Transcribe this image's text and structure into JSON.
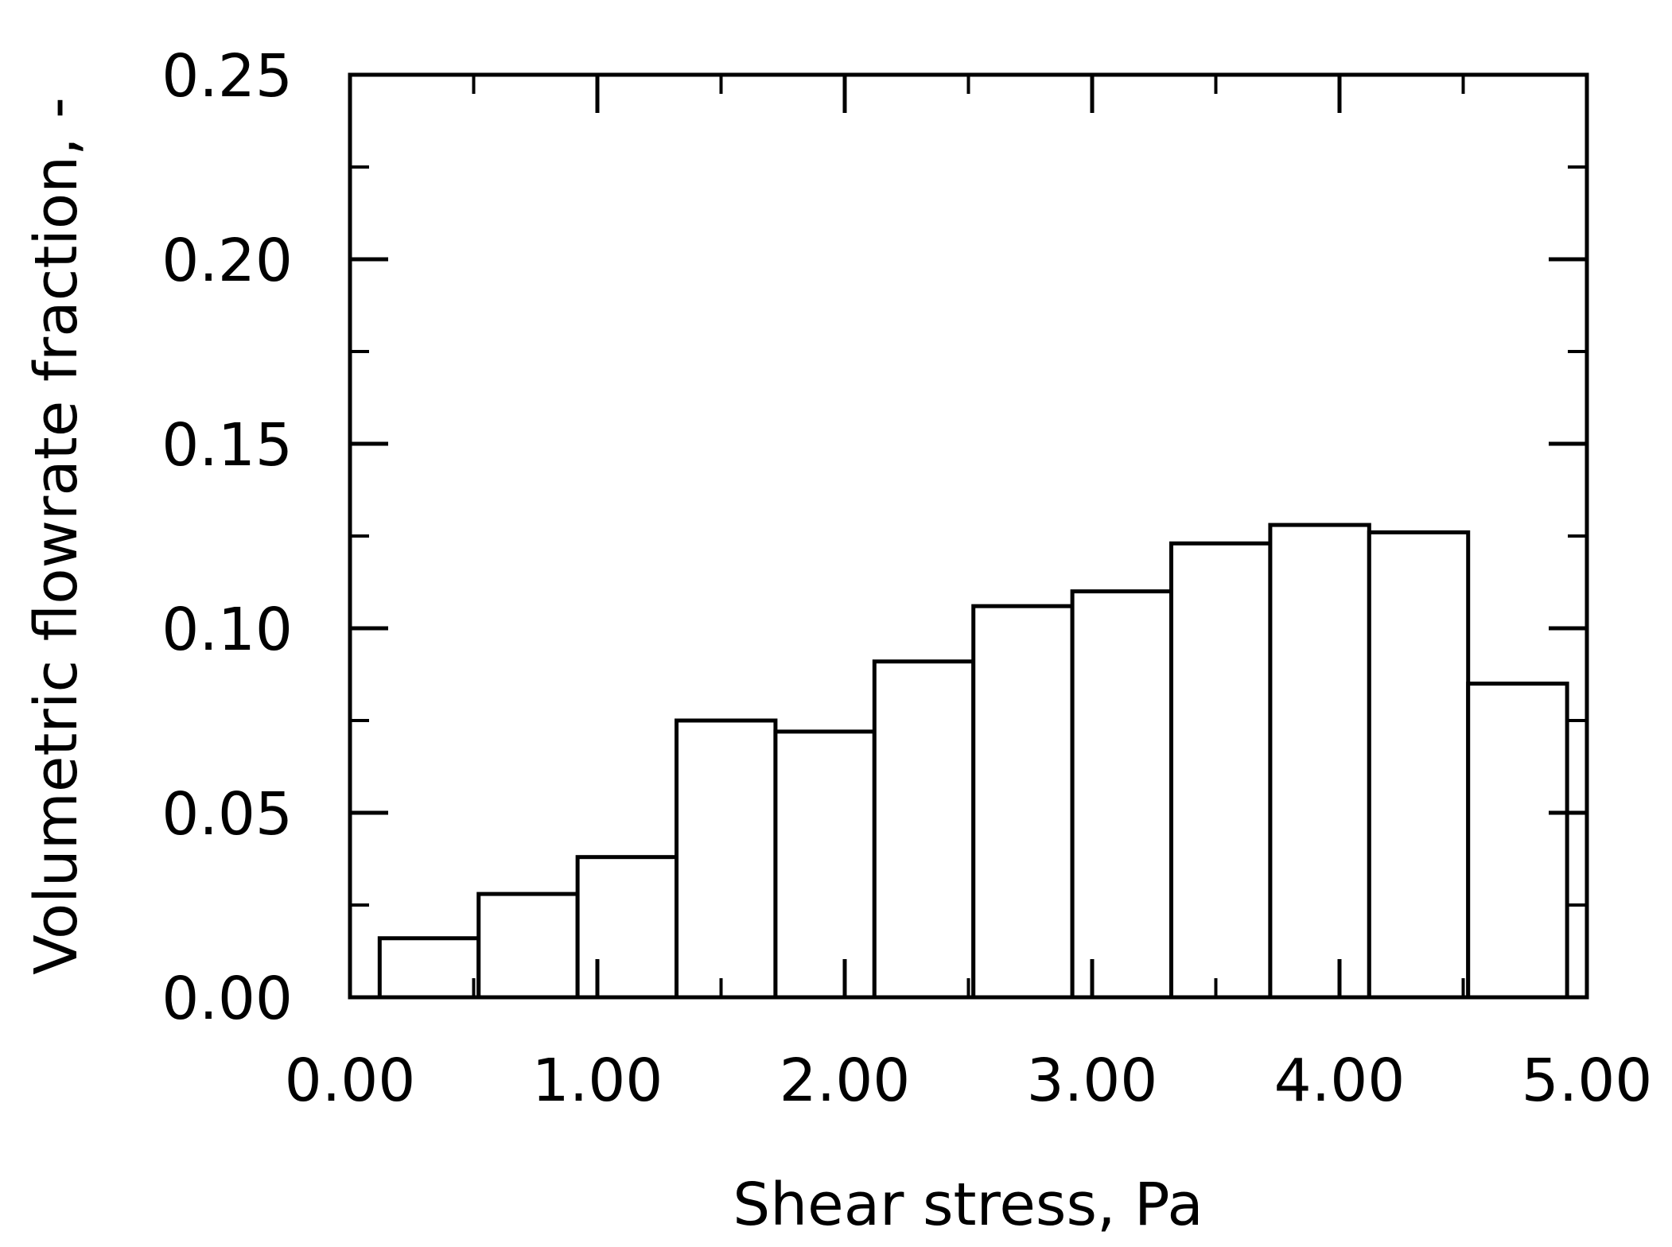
{
  "chart_data": {
    "type": "bar",
    "title": "",
    "xlabel": "Shear stress, Pa",
    "ylabel": "Volumetric flowrate fraction, -",
    "xlim": [
      0.0,
      5.0
    ],
    "ylim": [
      0.0,
      0.25
    ],
    "x_ticks": [
      "0.00",
      "1.00",
      "2.00",
      "3.00",
      "4.00",
      "5.00"
    ],
    "y_ticks": [
      "0.00",
      "0.05",
      "0.10",
      "0.15",
      "0.20",
      "0.25"
    ],
    "grid": false,
    "bins": [
      {
        "x0": 0.12,
        "x1": 0.52,
        "value": 0.016
      },
      {
        "x0": 0.52,
        "x1": 0.92,
        "value": 0.028
      },
      {
        "x0": 0.92,
        "x1": 1.32,
        "value": 0.038
      },
      {
        "x0": 1.32,
        "x1": 1.72,
        "value": 0.075
      },
      {
        "x0": 1.72,
        "x1": 2.12,
        "value": 0.072
      },
      {
        "x0": 2.12,
        "x1": 2.52,
        "value": 0.091
      },
      {
        "x0": 2.52,
        "x1": 2.92,
        "value": 0.106
      },
      {
        "x0": 2.92,
        "x1": 3.32,
        "value": 0.11
      },
      {
        "x0": 3.32,
        "x1": 3.72,
        "value": 0.123
      },
      {
        "x0": 3.72,
        "x1": 4.12,
        "value": 0.128
      },
      {
        "x0": 4.12,
        "x1": 4.52,
        "value": 0.126
      },
      {
        "x0": 4.52,
        "x1": 4.92,
        "value": 0.085
      }
    ]
  }
}
